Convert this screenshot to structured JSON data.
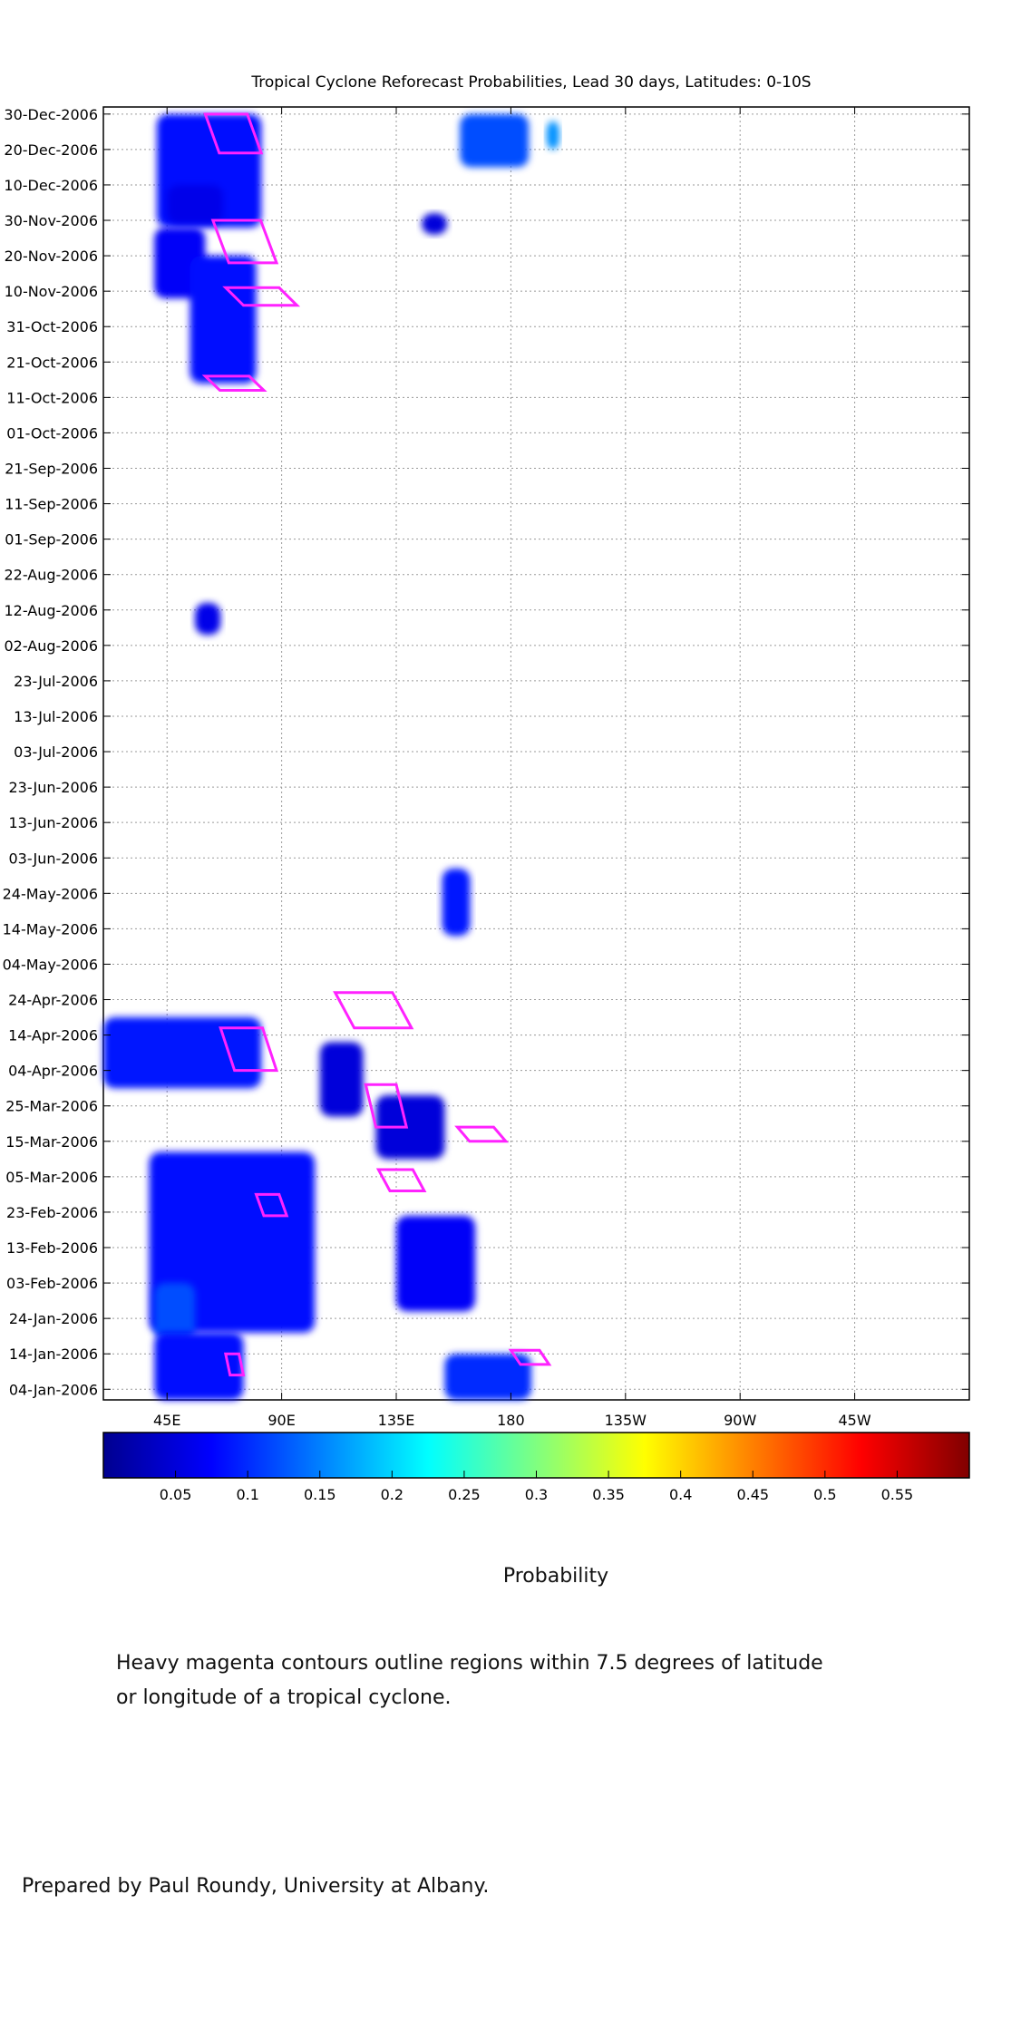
{
  "chart_data": {
    "type": "heatmap",
    "title": "Tropical Cyclone Reforecast Probabilities, Lead 30 days, Latitudes: 0-10S",
    "x_ticks": [
      "45E",
      "90E",
      "135E",
      "180",
      "135W",
      "90W",
      "45W"
    ],
    "x_tick_values": [
      45,
      90,
      135,
      180,
      225,
      270,
      315
    ],
    "xlim": [
      20,
      360
    ],
    "y_ticks": [
      "30-Dec-2006",
      "20-Dec-2006",
      "10-Dec-2006",
      "30-Nov-2006",
      "20-Nov-2006",
      "10-Nov-2006",
      "31-Oct-2006",
      "21-Oct-2006",
      "11-Oct-2006",
      "01-Oct-2006",
      "21-Sep-2006",
      "11-Sep-2006",
      "01-Sep-2006",
      "22-Aug-2006",
      "12-Aug-2006",
      "02-Aug-2006",
      "23-Jul-2006",
      "13-Jul-2006",
      "03-Jul-2006",
      "23-Jun-2006",
      "13-Jun-2006",
      "03-Jun-2006",
      "24-May-2006",
      "14-May-2006",
      "04-May-2006",
      "24-Apr-2006",
      "14-Apr-2006",
      "04-Apr-2006",
      "25-Mar-2006",
      "15-Mar-2006",
      "05-Mar-2006",
      "23-Feb-2006",
      "13-Feb-2006",
      "03-Feb-2006",
      "24-Jan-2006",
      "14-Jan-2006",
      "04-Jan-2006"
    ],
    "grid": true,
    "colorbar": {
      "ticks": [
        "0.05",
        "0.1",
        "0.15",
        "0.2",
        "0.25",
        "0.3",
        "0.35",
        "0.4",
        "0.45",
        "0.5",
        "0.55"
      ],
      "tick_values": [
        0.05,
        0.1,
        0.15,
        0.2,
        0.25,
        0.3,
        0.35,
        0.4,
        0.45,
        0.5,
        0.55
      ],
      "range": [
        0,
        0.6
      ],
      "label": "Probability"
    },
    "probability_regions": [
      {
        "lon": [
          41,
          82
        ],
        "dates": [
          "28-Nov-2006",
          "30-Dec-2006"
        ],
        "prob": 0.08
      },
      {
        "lon": [
          45,
          67
        ],
        "dates": [
          "29-Nov-2006",
          "10-Dec-2006"
        ],
        "prob": 0.06
      },
      {
        "lon": [
          40,
          60
        ],
        "dates": [
          "08-Nov-2006",
          "28-Nov-2006"
        ],
        "prob": 0.07
      },
      {
        "lon": [
          54,
          80
        ],
        "dates": [
          "15-Oct-2006",
          "20-Nov-2006"
        ],
        "prob": 0.08
      },
      {
        "lon": [
          145,
          155
        ],
        "dates": [
          "26-Nov-2006",
          "02-Dec-2006"
        ],
        "prob": 0.05
      },
      {
        "lon": [
          160,
          187
        ],
        "dates": [
          "15-Dec-2006",
          "30-Dec-2006"
        ],
        "prob": 0.12
      },
      {
        "lon": [
          194,
          199
        ],
        "dates": [
          "20-Dec-2006",
          "28-Dec-2006"
        ],
        "prob": 0.16
      },
      {
        "lon": [
          56,
          66
        ],
        "dates": [
          "05-Aug-2006",
          "14-Aug-2006"
        ],
        "prob": 0.06
      },
      {
        "lon": [
          153,
          164
        ],
        "dates": [
          "12-May-2006",
          "31-May-2006"
        ],
        "prob": 0.09
      },
      {
        "lon": [
          20,
          82
        ],
        "dates": [
          "30-Mar-2006",
          "19-Apr-2006"
        ],
        "prob": 0.09
      },
      {
        "lon": [
          105,
          122
        ],
        "dates": [
          "22-Mar-2006",
          "12-Apr-2006"
        ],
        "prob": 0.05
      },
      {
        "lon": [
          127,
          154
        ],
        "dates": [
          "10-Mar-2006",
          "28-Mar-2006"
        ],
        "prob": 0.05
      },
      {
        "lon": [
          38,
          103
        ],
        "dates": [
          "20-Jan-2006",
          "12-Mar-2006"
        ],
        "prob": 0.08
      },
      {
        "lon": [
          40,
          56
        ],
        "dates": [
          "18-Jan-2006",
          "03-Feb-2006"
        ],
        "prob": 0.12
      },
      {
        "lon": [
          135,
          166
        ],
        "dates": [
          "26-Jan-2006",
          "22-Feb-2006"
        ],
        "prob": 0.07
      },
      {
        "lon": [
          40,
          75
        ],
        "dates": [
          "01-Jan-2006",
          "20-Jan-2006"
        ],
        "prob": 0.08
      },
      {
        "lon": [
          154,
          188
        ],
        "dates": [
          "01-Jan-2006",
          "14-Jan-2006"
        ],
        "prob": 0.1
      }
    ],
    "cyclone_contours": [
      {
        "lon": [
          60,
          82
        ],
        "dates": [
          "19-Dec-2006",
          "30-Dec-2006"
        ]
      },
      {
        "lon": [
          63,
          88
        ],
        "dates": [
          "18-Nov-2006",
          "30-Nov-2006"
        ]
      },
      {
        "lon": [
          68,
          96
        ],
        "dates": [
          "06-Nov-2006",
          "11-Nov-2006"
        ]
      },
      {
        "lon": [
          60,
          83
        ],
        "dates": [
          "13-Oct-2006",
          "17-Oct-2006"
        ]
      },
      {
        "lon": [
          66,
          88
        ],
        "dates": [
          "04-Apr-2006",
          "16-Apr-2006"
        ]
      },
      {
        "lon": [
          111,
          141
        ],
        "dates": [
          "16-Apr-2006",
          "26-Apr-2006"
        ]
      },
      {
        "lon": [
          123,
          139
        ],
        "dates": [
          "19-Mar-2006",
          "31-Mar-2006"
        ]
      },
      {
        "lon": [
          159,
          178
        ],
        "dates": [
          "15-Mar-2006",
          "19-Mar-2006"
        ]
      },
      {
        "lon": [
          128,
          146
        ],
        "dates": [
          "01-Mar-2006",
          "07-Mar-2006"
        ]
      },
      {
        "lon": [
          80,
          92
        ],
        "dates": [
          "22-Feb-2006",
          "28-Feb-2006"
        ]
      },
      {
        "lon": [
          68,
          75
        ],
        "dates": [
          "08-Jan-2006",
          "14-Jan-2006"
        ]
      },
      {
        "lon": [
          180,
          195
        ],
        "dates": [
          "11-Jan-2006",
          "15-Jan-2006"
        ]
      }
    ]
  },
  "captions": {
    "note_line1": "Heavy magenta contours outline regions within 7.5 degrees of latitude",
    "note_line2": "or longitude of a tropical cyclone.",
    "credit": "Prepared by Paul Roundy, University at Albany."
  },
  "colors": {
    "contour": "#ff22ff",
    "colormap": [
      "#00008f",
      "#0000ff",
      "#00ffff",
      "#ffff00",
      "#ff0000",
      "#800000"
    ]
  }
}
